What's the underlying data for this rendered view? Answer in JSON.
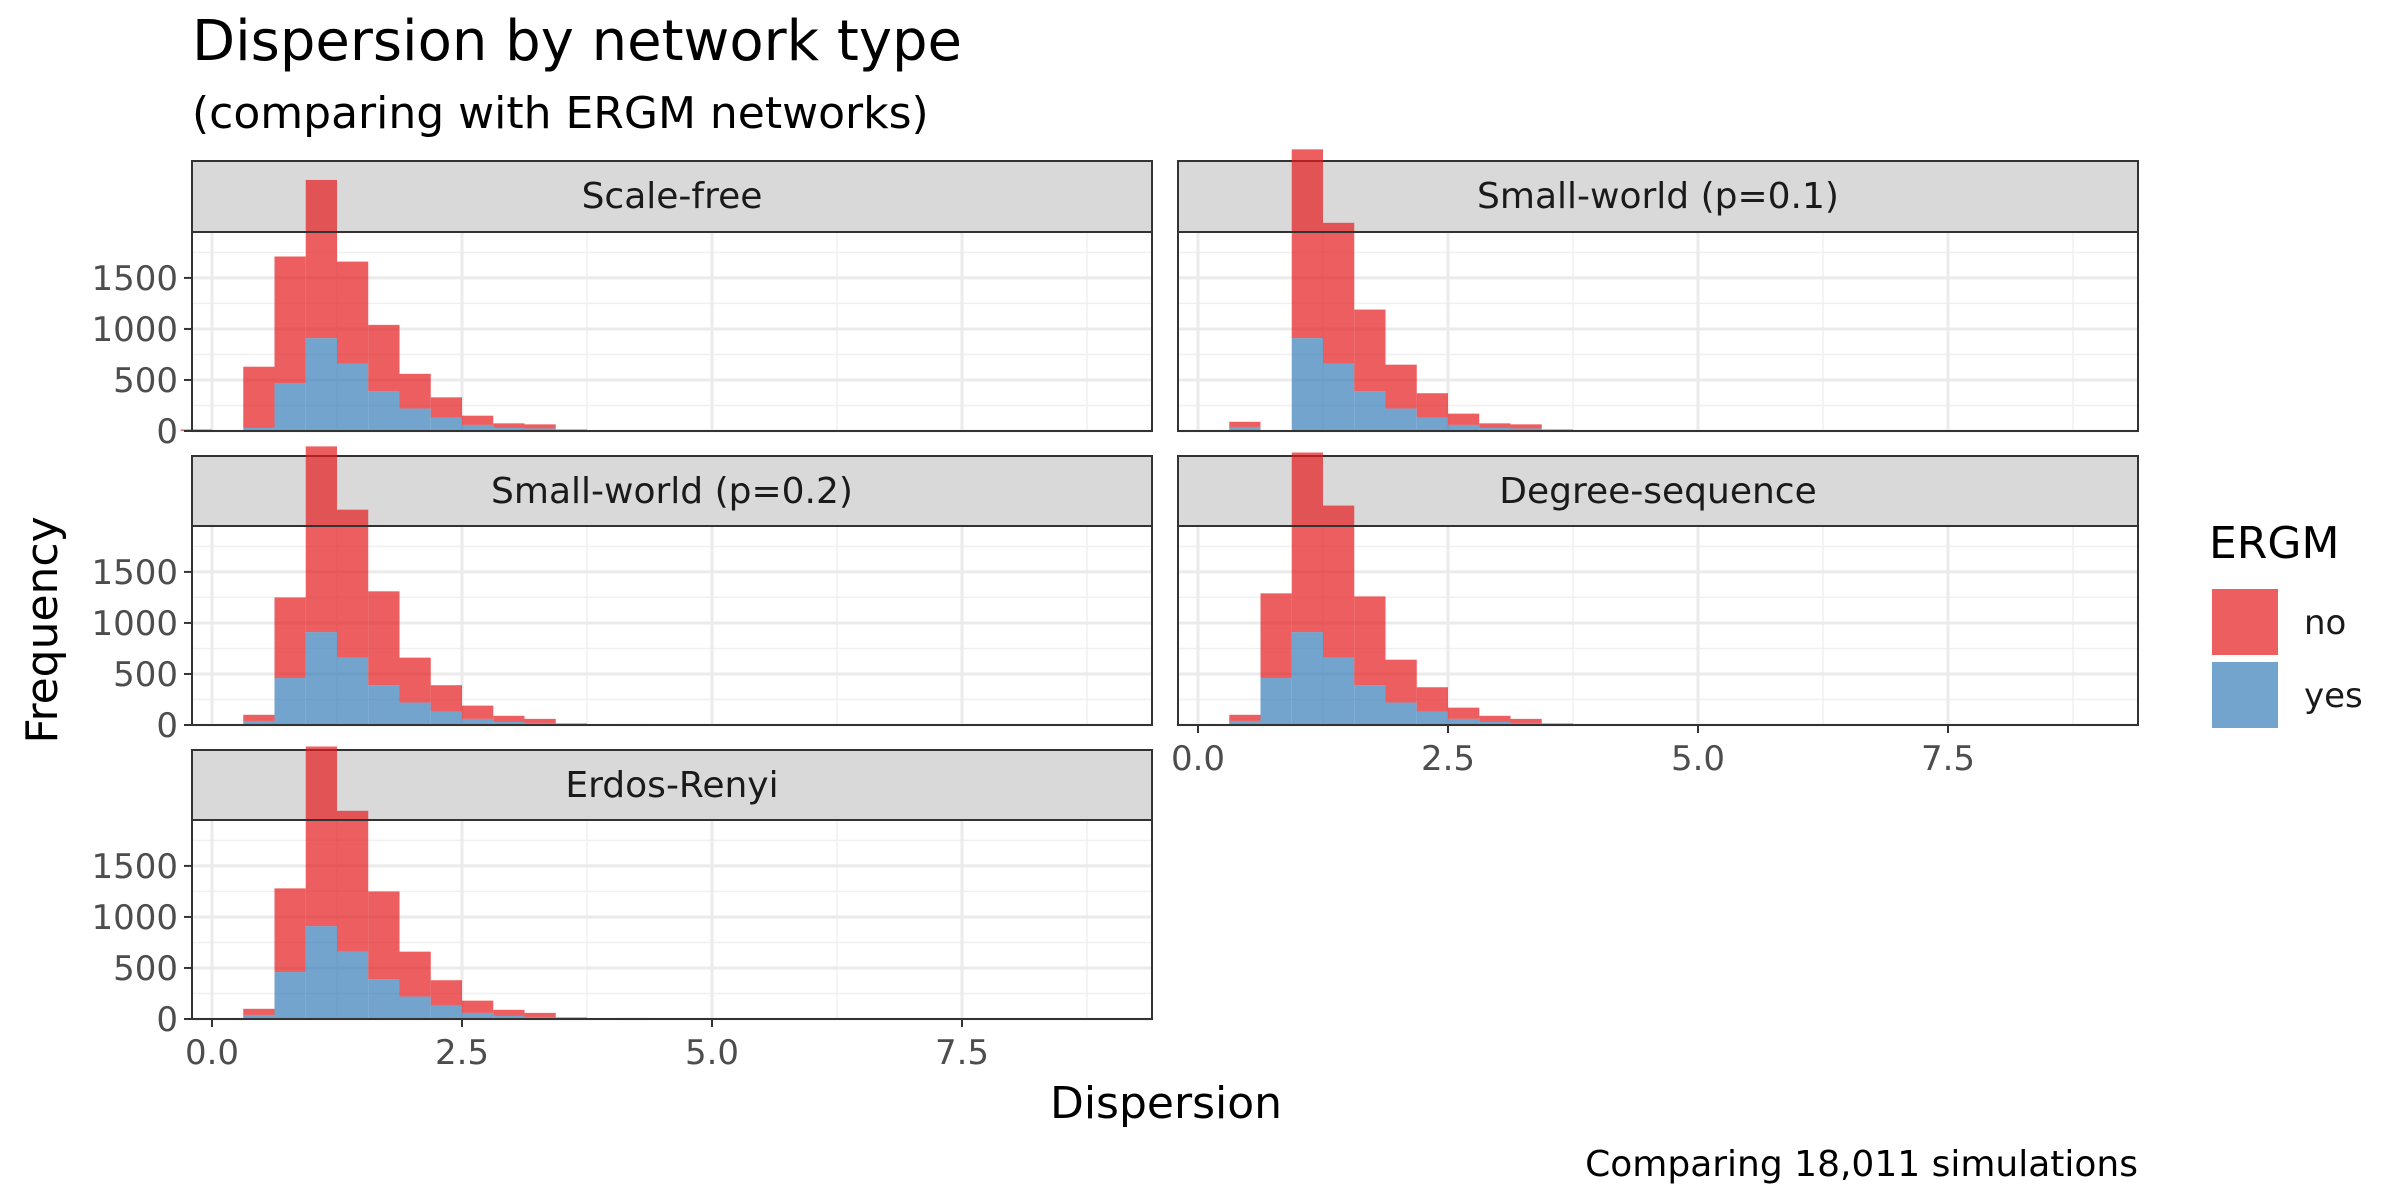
{
  "chart_data": {
    "type": "bar",
    "subtype": "stacked histogram, faceted",
    "title": "Dispersion by network type",
    "subtitle": "(comparing with ERGM networks)",
    "xlabel": "Dispersion",
    "ylabel": "Frequency",
    "caption": "Comparing 18,011 simulations",
    "legend": {
      "title": "ERGM",
      "position": "right",
      "entries": [
        {
          "label": "no",
          "color": "#E41A1C"
        },
        {
          "label": "yes",
          "color": "#377EB8"
        }
      ]
    },
    "bin_width": 0.625,
    "bin_starts": [
      -0.3125,
      0.3125,
      0.9375,
      1.5625,
      2.1875,
      2.8125,
      3.4375,
      4.0625
    ],
    "bins": [
      -0.3125,
      0.3125,
      0.9375,
      1.5625,
      2.1875,
      2.8125,
      3.4375,
      4.0625
    ],
    "xlim": [
      -0.2,
      9.4
    ],
    "xticks": [
      0.0,
      2.5,
      5.0,
      7.5
    ],
    "xtick_labels": [
      "0.0",
      "2.5",
      "5.0",
      "7.5"
    ],
    "ylim": [
      0,
      1950
    ],
    "yticks": [
      0,
      500,
      1000,
      1500
    ],
    "ytick_labels": [
      "0",
      "500",
      "1000",
      "1500"
    ],
    "grid": true,
    "facets": [
      {
        "name": "Scale-free",
        "bins": [
          {
            "start": -0.3125,
            "yes": 0,
            "no": 15
          },
          {
            "start": 0.3125,
            "yes": 30,
            "no": 600
          },
          {
            "start": 0.625,
            "yes": 470,
            "no": 1240
          },
          {
            "start": 0.9375,
            "yes": 910,
            "no": 1550
          },
          {
            "start": 1.25,
            "yes": 660,
            "no": 1000
          },
          {
            "start": 1.5625,
            "yes": 390,
            "no": 650
          },
          {
            "start": 1.875,
            "yes": 220,
            "no": 340
          },
          {
            "start": 2.1875,
            "yes": 130,
            "no": 200
          },
          {
            "start": 2.5,
            "yes": 60,
            "no": 90
          },
          {
            "start": 2.8125,
            "yes": 30,
            "no": 45
          },
          {
            "start": 3.125,
            "yes": 25,
            "no": 40
          },
          {
            "start": 3.4375,
            "yes": 5,
            "no": 10
          }
        ]
      },
      {
        "name": "Small-world (p=0.1)",
        "bins": [
          {
            "start": 0.3125,
            "yes": 40,
            "no": 50
          },
          {
            "start": 0.9375,
            "yes": 910,
            "no": 1850
          },
          {
            "start": 1.25,
            "yes": 660,
            "no": 1380
          },
          {
            "start": 1.5625,
            "yes": 390,
            "no": 800
          },
          {
            "start": 1.875,
            "yes": 220,
            "no": 430
          },
          {
            "start": 2.1875,
            "yes": 130,
            "no": 240
          },
          {
            "start": 2.5,
            "yes": 60,
            "no": 110
          },
          {
            "start": 2.8125,
            "yes": 30,
            "no": 45
          },
          {
            "start": 3.125,
            "yes": 25,
            "no": 40
          },
          {
            "start": 3.4375,
            "yes": 5,
            "no": 10
          }
        ]
      },
      {
        "name": "Small-world (p=0.2)",
        "bins": [
          {
            "start": 0.3125,
            "yes": 40,
            "no": 60
          },
          {
            "start": 0.625,
            "yes": 460,
            "no": 790
          },
          {
            "start": 0.9375,
            "yes": 910,
            "no": 1820
          },
          {
            "start": 1.25,
            "yes": 660,
            "no": 1450
          },
          {
            "start": 1.5625,
            "yes": 390,
            "no": 920
          },
          {
            "start": 1.875,
            "yes": 220,
            "no": 440
          },
          {
            "start": 2.1875,
            "yes": 130,
            "no": 260
          },
          {
            "start": 2.5,
            "yes": 60,
            "no": 130
          },
          {
            "start": 2.8125,
            "yes": 30,
            "no": 60
          },
          {
            "start": 3.125,
            "yes": 20,
            "no": 40
          },
          {
            "start": 3.4375,
            "yes": 5,
            "no": 10
          },
          {
            "start": 4.0625,
            "yes": 0,
            "no": 10
          }
        ]
      },
      {
        "name": "Degree-sequence",
        "bins": [
          {
            "start": 0.3125,
            "yes": 40,
            "no": 60
          },
          {
            "start": 0.625,
            "yes": 460,
            "no": 830
          },
          {
            "start": 0.9375,
            "yes": 910,
            "no": 1760
          },
          {
            "start": 1.25,
            "yes": 660,
            "no": 1490
          },
          {
            "start": 1.5625,
            "yes": 390,
            "no": 870
          },
          {
            "start": 1.875,
            "yes": 220,
            "no": 420
          },
          {
            "start": 2.1875,
            "yes": 130,
            "no": 240
          },
          {
            "start": 2.5,
            "yes": 60,
            "no": 110
          },
          {
            "start": 2.8125,
            "yes": 30,
            "no": 60
          },
          {
            "start": 3.125,
            "yes": 20,
            "no": 40
          },
          {
            "start": 3.4375,
            "yes": 5,
            "no": 10
          }
        ]
      },
      {
        "name": "Erdos-Renyi",
        "bins": [
          {
            "start": 0.3125,
            "yes": 40,
            "no": 60
          },
          {
            "start": 0.625,
            "yes": 460,
            "no": 820
          },
          {
            "start": 0.9375,
            "yes": 910,
            "no": 1760
          },
          {
            "start": 1.25,
            "yes": 660,
            "no": 1380
          },
          {
            "start": 1.5625,
            "yes": 390,
            "no": 860
          },
          {
            "start": 1.875,
            "yes": 220,
            "no": 440
          },
          {
            "start": 2.1875,
            "yes": 130,
            "no": 250
          },
          {
            "start": 2.5,
            "yes": 60,
            "no": 120
          },
          {
            "start": 2.8125,
            "yes": 30,
            "no": 60
          },
          {
            "start": 3.125,
            "yes": 20,
            "no": 40
          },
          {
            "start": 3.4375,
            "yes": 5,
            "no": 10
          },
          {
            "start": 4.0625,
            "yes": 0,
            "no": 10
          }
        ]
      }
    ]
  }
}
